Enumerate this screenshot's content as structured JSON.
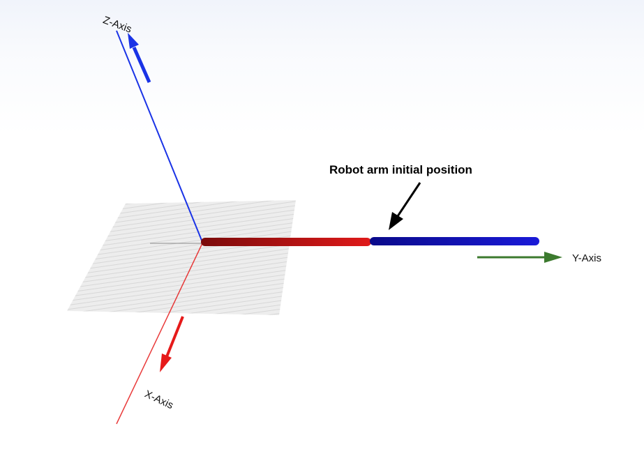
{
  "labels": {
    "z_axis": "Z-Axis",
    "y_axis": "Y-Axis",
    "x_axis": "X-Axis",
    "annotation": "Robot arm initial position"
  },
  "colors": {
    "floor_blue": "#94acd6",
    "floor_white": "#f2f2f2",
    "z_axis": "#1a33e6",
    "x_axis": "#e61a1a",
    "y_arrow": "#3c7a2e",
    "arm_red": "#d01a1a",
    "arm_blue": "#1010c8",
    "annotation": "#000000"
  }
}
